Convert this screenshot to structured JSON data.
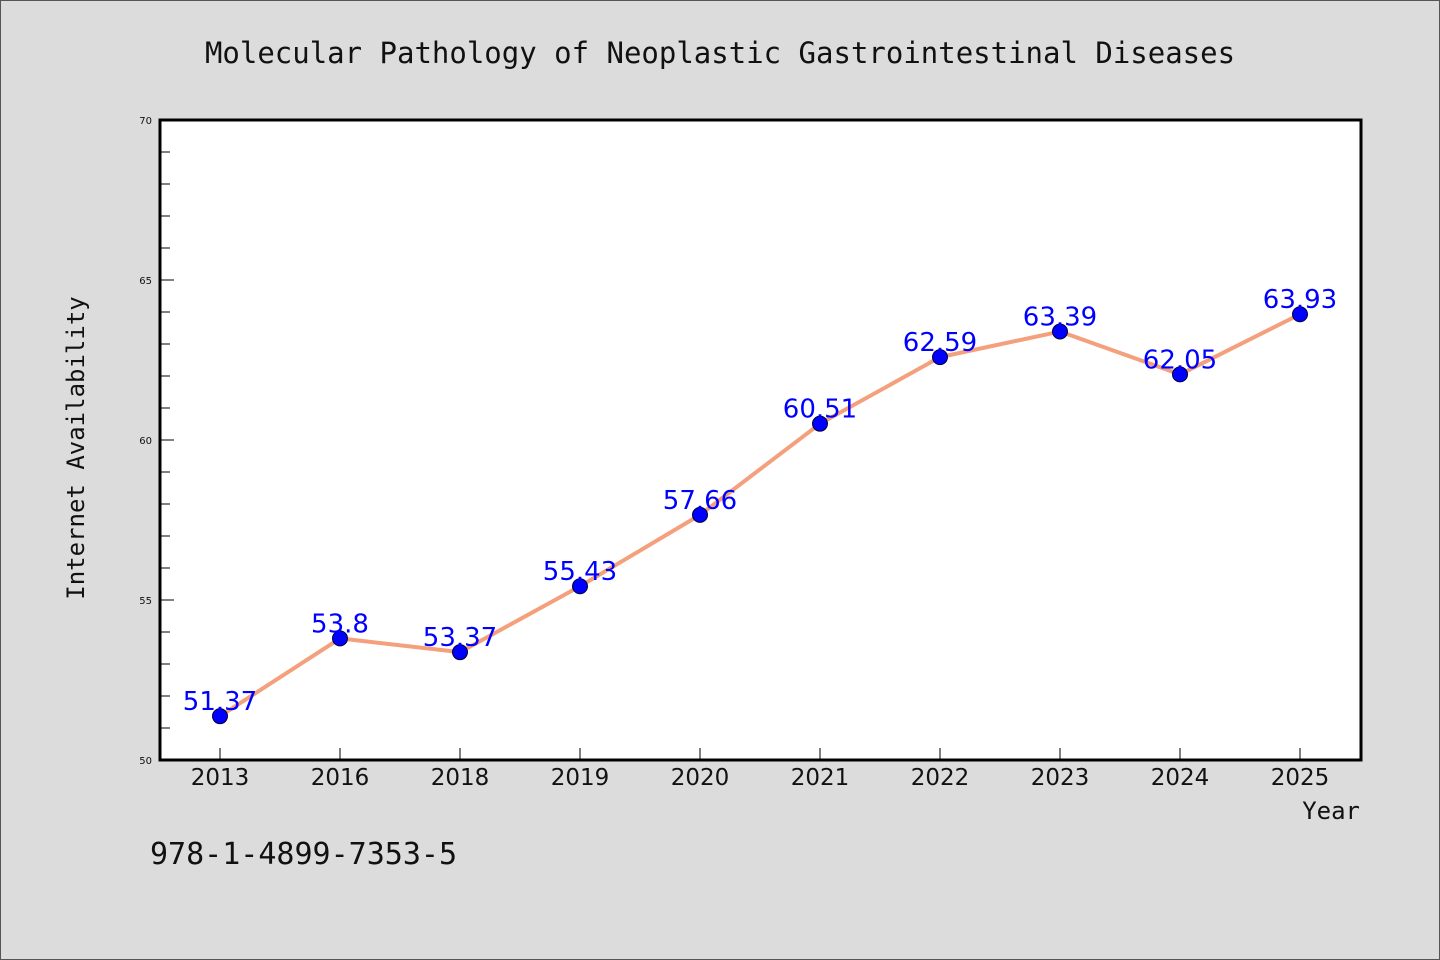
{
  "chart_data": {
    "type": "line",
    "title": "Molecular Pathology of Neoplastic Gastrointestinal Diseases",
    "xlabel": "Year",
    "ylabel": "Internet Availability",
    "categories": [
      "2013",
      "2016",
      "2018",
      "2019",
      "2020",
      "2021",
      "2022",
      "2023",
      "2024",
      "2025"
    ],
    "values": [
      51.37,
      53.8,
      53.37,
      55.43,
      57.66,
      60.51,
      62.59,
      63.39,
      62.05,
      63.93
    ],
    "data_labels": [
      "51.37",
      "53.8",
      "53.37",
      "55.43",
      "57.66",
      "60.51",
      "62.59",
      "63.39",
      "62.05",
      "63.93"
    ],
    "ylim": [
      50,
      70
    ],
    "yticks": [
      50,
      55,
      60,
      65,
      70
    ],
    "grid": false,
    "legend": "none",
    "colors": {
      "line": "#f4a07c",
      "marker": "#0000ff",
      "data_label": "#0000ff",
      "background": "#dcdcdc",
      "plot_background": "#ffffff"
    }
  },
  "footer_code": "978-1-4899-7353-5"
}
